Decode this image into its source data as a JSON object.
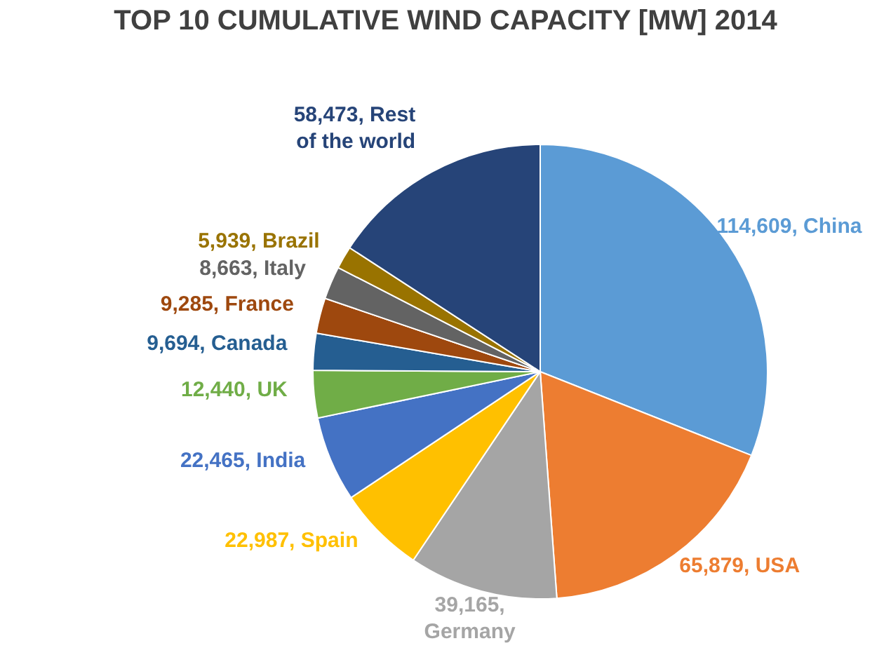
{
  "chart_data": {
    "type": "pie",
    "title": "TOP 10 CUMULATIVE WIND CAPACITY [MW] 2014",
    "categories": [
      "China",
      "USA",
      "Germany",
      "Spain",
      "India",
      "UK",
      "Canada",
      "France",
      "Italy",
      "Brazil",
      "Rest of the world"
    ],
    "values": [
      114609,
      65879,
      39165,
      22987,
      22465,
      12440,
      9694,
      9285,
      8663,
      5939,
      58473
    ],
    "colors": [
      "#5b9bd5",
      "#ed7d31",
      "#a5a5a5",
      "#ffc000",
      "#4472c4",
      "#70ad47",
      "#255e91",
      "#9e480e",
      "#636363",
      "#997300",
      "#264478"
    ],
    "value_labels": [
      "114,609,",
      "65,879,",
      "39,165,",
      "22,987,",
      "22,465,",
      "12,440,",
      "9,694,",
      "9,285,",
      "8,663,",
      "5,939,",
      "58,473,"
    ]
  }
}
